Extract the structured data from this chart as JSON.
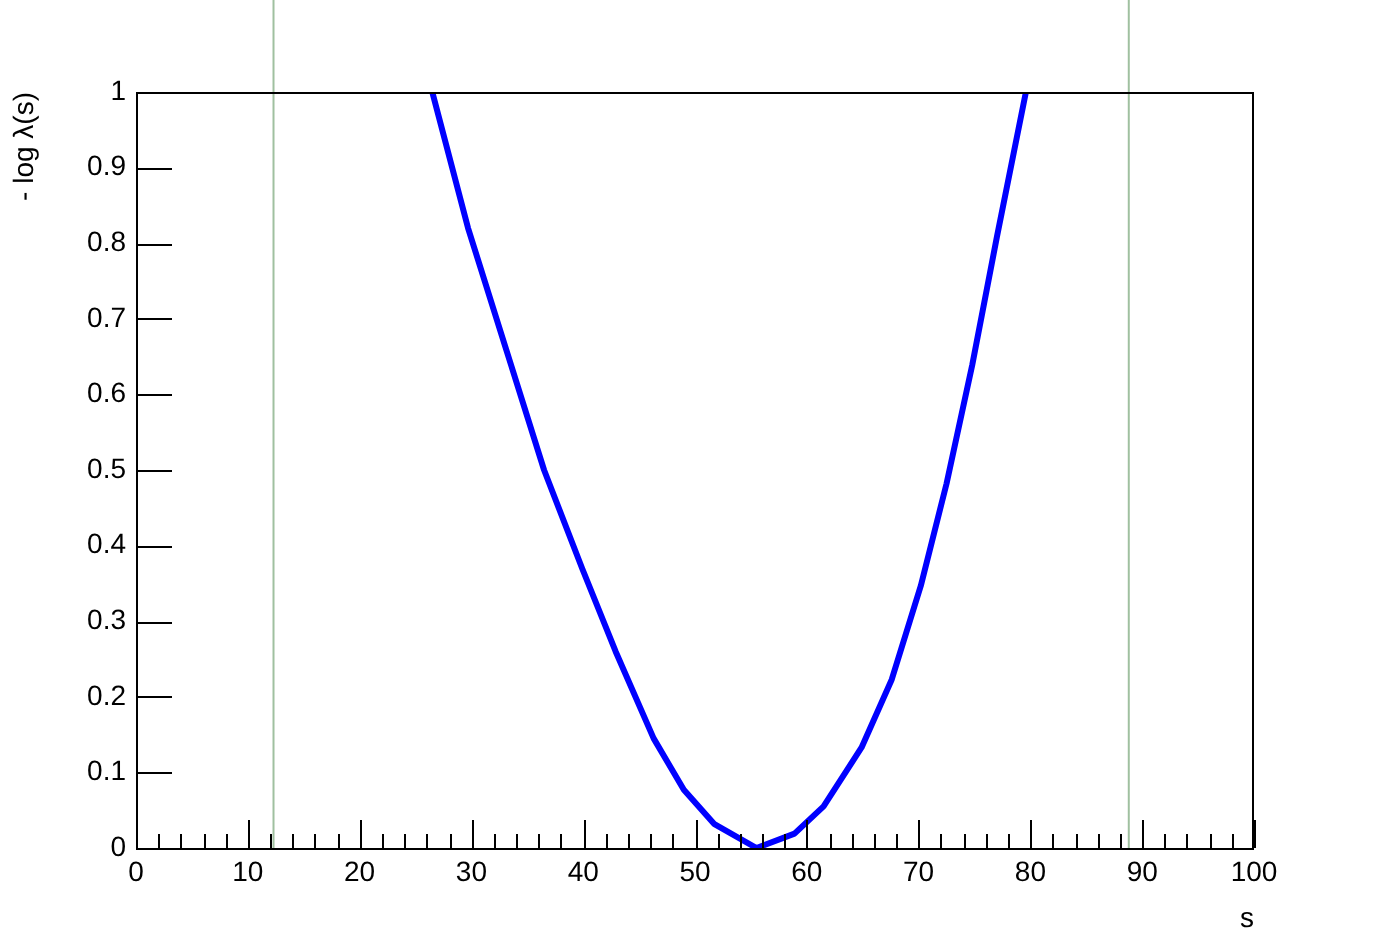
{
  "chart_data": {
    "type": "line",
    "xlabel": "s",
    "ylabel": "- log λ(s)",
    "series": [
      {
        "color": "#0000ff",
        "x": [
          26.5,
          29.7,
          33.1,
          36.5,
          39.9,
          42.9,
          46.3,
          49.0,
          51.7,
          55.5,
          58.9,
          61.5,
          64.9,
          67.6,
          70.2,
          72.5,
          74.8,
          77.0,
          79.6
        ],
        "values": [
          1.0,
          0.82,
          0.66,
          0.5,
          0.37,
          0.26,
          0.145,
          0.077,
          0.032,
          0.0,
          0.019,
          0.055,
          0.133,
          0.223,
          0.347,
          0.482,
          0.639,
          0.808,
          1.0
        ]
      }
    ],
    "xlim": [
      0,
      100
    ],
    "ylim": [
      0,
      1
    ],
    "xticks": [
      0,
      {
        "value": 2,
        "label": null
      },
      {
        "value": 4,
        "label": null
      },
      {
        "value": 6,
        "label": null
      },
      {
        "value": 8,
        "label": null
      },
      10,
      {
        "value": 12,
        "label": null
      },
      {
        "value": 14,
        "label": null
      },
      {
        "value": 16,
        "label": null
      },
      {
        "value": 18,
        "label": null
      },
      20,
      {
        "value": 22,
        "label": null
      },
      {
        "value": 24,
        "label": null
      },
      {
        "value": 26,
        "label": null
      },
      {
        "value": 28,
        "label": null
      },
      30,
      {
        "value": 32,
        "label": null
      },
      {
        "value": 34,
        "label": null
      },
      {
        "value": 36,
        "label": null
      },
      {
        "value": 38,
        "label": null
      },
      40,
      {
        "value": 42,
        "label": null
      },
      {
        "value": 44,
        "label": null
      },
      {
        "value": 46,
        "label": null
      },
      {
        "value": 48,
        "label": null
      },
      50,
      {
        "value": 52,
        "label": null
      },
      {
        "value": 54,
        "label": null
      },
      {
        "value": 56,
        "label": null
      },
      {
        "value": 58,
        "label": null
      },
      60,
      {
        "value": 62,
        "label": null
      },
      {
        "value": 64,
        "label": null
      },
      {
        "value": 66,
        "label": null
      },
      {
        "value": 68,
        "label": null
      },
      70,
      {
        "value": 72,
        "label": null
      },
      {
        "value": 74,
        "label": null
      },
      {
        "value": 76,
        "label": null
      },
      {
        "value": 78,
        "label": null
      },
      80,
      {
        "value": 82,
        "label": null
      },
      {
        "value": 84,
        "label": null
      },
      {
        "value": 86,
        "label": null
      },
      {
        "value": 88,
        "label": null
      },
      90,
      {
        "value": 92,
        "label": null
      },
      {
        "value": 94,
        "label": null
      },
      {
        "value": 96,
        "label": null
      },
      {
        "value": 98,
        "label": null
      },
      100
    ],
    "yticks": [
      0,
      0.1,
      0.2,
      0.3,
      0.4,
      0.5,
      0.6,
      0.7,
      0.8,
      0.9,
      1
    ],
    "ref_lines": [
      {
        "axis": "x",
        "value": 12.3,
        "color": "#a0c0a0"
      },
      {
        "axis": "x",
        "value": 88.8,
        "color": "#a0c0a0"
      }
    ],
    "grid": false,
    "legend": false,
    "marker": "none",
    "line_style": "solid"
  }
}
